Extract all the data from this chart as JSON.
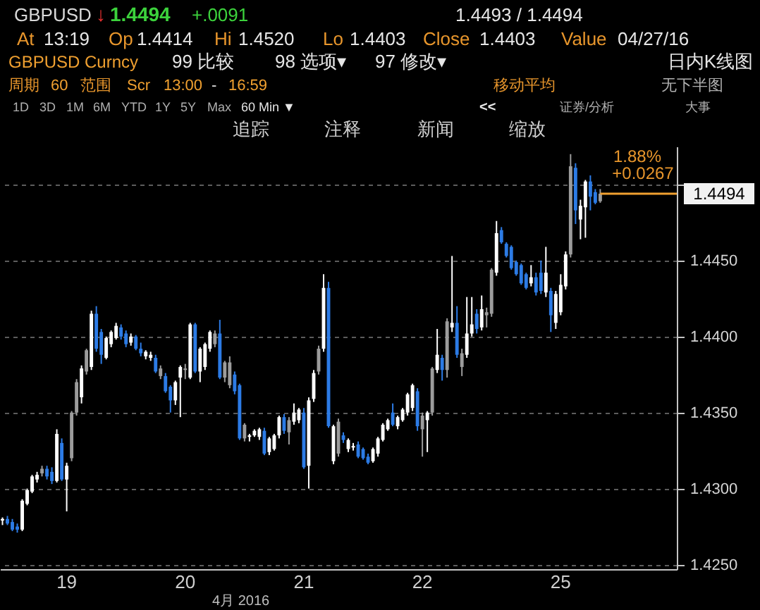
{
  "chart_data": {
    "type": "candlestick",
    "categories": [
      null,
      null,
      null,
      null,
      null,
      null,
      null,
      null,
      null,
      null,
      null,
      null,
      null,
      "19",
      null,
      null,
      null,
      null,
      null,
      null,
      null,
      null,
      null,
      null,
      null,
      null,
      null,
      null,
      null,
      null,
      null,
      null,
      null,
      null,
      null,
      null,
      null,
      "20",
      null,
      null,
      null,
      null,
      null,
      null,
      null,
      null,
      null,
      null,
      null,
      null,
      null,
      null,
      null,
      null,
      null,
      null,
      null,
      null,
      null,
      null,
      null,
      "21",
      null,
      null,
      null,
      null,
      null,
      null,
      null,
      null,
      null,
      null,
      null,
      null,
      null,
      null,
      null,
      null,
      null,
      null,
      null,
      null,
      null,
      null,
      null,
      "22",
      null,
      null,
      null,
      null,
      null,
      null,
      null,
      null,
      null,
      null,
      null,
      null,
      null,
      null,
      null,
      null,
      null,
      null,
      null,
      null,
      null,
      null,
      null,
      null,
      null,
      null,
      null,
      "25",
      null,
      null,
      null,
      null,
      null,
      null,
      null,
      null,
      null,
      null,
      null,
      null,
      null,
      null,
      null,
      null,
      null,
      null,
      null,
      null,
      null,
      null,
      null
    ],
    "ohlc": [
      [
        1.4279,
        1.4281,
        1.4276,
        1.428
      ],
      [
        1.428,
        1.4282,
        1.4276,
        1.4277
      ],
      [
        1.4278,
        1.428,
        1.4272,
        1.4273
      ],
      [
        1.4275,
        1.4277,
        1.4271,
        1.4273
      ],
      [
        1.4273,
        1.4293,
        1.4272,
        1.4292
      ],
      [
        1.429,
        1.43,
        1.4289,
        1.4299
      ],
      [
        1.4298,
        1.4309,
        1.4297,
        1.4308
      ],
      [
        1.4306,
        1.4311,
        1.4304,
        1.4309
      ],
      [
        1.431,
        1.4315,
        1.4308,
        1.4313
      ],
      [
        1.4313,
        1.4315,
        1.4306,
        1.4308
      ],
      [
        1.4311,
        1.4314,
        1.4303,
        1.4305
      ],
      [
        1.4305,
        1.4339,
        1.4304,
        1.4336
      ],
      [
        1.433,
        1.4333,
        1.4305,
        1.4306
      ],
      [
        1.4306,
        1.4317,
        1.4285,
        1.4315
      ],
      [
        1.432,
        1.4351,
        1.4318,
        1.435
      ],
      [
        1.435,
        1.4372,
        1.4348,
        1.437
      ],
      [
        1.436,
        1.4381,
        1.4356,
        1.4379
      ],
      [
        1.4377,
        1.4392,
        1.4375,
        1.4391
      ],
      [
        1.438,
        1.4417,
        1.4378,
        1.4415
      ],
      [
        1.4415,
        1.442,
        1.439,
        1.4392
      ],
      [
        1.4403,
        1.4405,
        1.4382,
        1.4388
      ],
      [
        1.4386,
        1.44,
        1.4385,
        1.4399
      ],
      [
        1.4395,
        1.4404,
        1.4393,
        1.4403
      ],
      [
        1.4399,
        1.4409,
        1.4398,
        1.4407
      ],
      [
        1.4406,
        1.4408,
        1.4398,
        1.44
      ],
      [
        1.4402,
        1.4404,
        1.4393,
        1.4395
      ],
      [
        1.4396,
        1.4402,
        1.4394,
        1.44
      ],
      [
        1.44,
        1.4401,
        1.4391,
        1.4392
      ],
      [
        1.4392,
        1.4396,
        1.4387,
        1.4389
      ],
      [
        1.4387,
        1.4391,
        1.4385,
        1.439
      ],
      [
        1.4386,
        1.439,
        1.4384,
        1.4388
      ],
      [
        1.4386,
        1.4388,
        1.4376,
        1.4377
      ],
      [
        1.4379,
        1.4381,
        1.4372,
        1.4374
      ],
      [
        1.4374,
        1.4376,
        1.4363,
        1.4364
      ],
      [
        1.4367,
        1.4368,
        1.435,
        1.4358
      ],
      [
        1.4358,
        1.4371,
        1.4355,
        1.437
      ],
      [
        1.4373,
        1.4381,
        1.4347,
        1.438
      ],
      [
        1.4378,
        1.4382,
        1.4372,
        1.4379
      ],
      [
        1.4373,
        1.4409,
        1.4372,
        1.4408
      ],
      [
        1.4408,
        1.4409,
        1.4376,
        1.4377
      ],
      [
        1.4377,
        1.4393,
        1.437,
        1.4392
      ],
      [
        1.438,
        1.4396,
        1.4378,
        1.4395
      ],
      [
        1.4392,
        1.4404,
        1.439,
        1.4403
      ],
      [
        1.4395,
        1.4404,
        1.4393,
        1.4402
      ],
      [
        1.4402,
        1.4411,
        1.4372,
        1.4373
      ],
      [
        1.4373,
        1.4384,
        1.437,
        1.4383
      ],
      [
        1.4383,
        1.4387,
        1.4366,
        1.4368
      ],
      [
        1.4375,
        1.4377,
        1.4362,
        1.4364
      ],
      [
        1.4368,
        1.4369,
        1.4332,
        1.4333
      ],
      [
        1.4333,
        1.4343,
        1.4331,
        1.4342
      ],
      [
        1.4334,
        1.4336,
        1.4331,
        1.4335
      ],
      [
        1.4335,
        1.4339,
        1.4334,
        1.4338
      ],
      [
        1.4334,
        1.434,
        1.4332,
        1.4339
      ],
      [
        1.4338,
        1.434,
        1.4322,
        1.4323
      ],
      [
        1.4324,
        1.4334,
        1.4322,
        1.4333
      ],
      [
        1.4326,
        1.4336,
        1.4325,
        1.4335
      ],
      [
        1.4335,
        1.4348,
        1.4333,
        1.4347
      ],
      [
        1.4347,
        1.4349,
        1.4336,
        1.4338
      ],
      [
        1.4337,
        1.4347,
        1.4329,
        1.4345
      ],
      [
        1.4344,
        1.4356,
        1.4342,
        1.435
      ],
      [
        1.4345,
        1.4353,
        1.4343,
        1.4352
      ],
      [
        1.435,
        1.4353,
        1.4313,
        1.4314
      ],
      [
        1.4315,
        1.436,
        1.43,
        1.4358
      ],
      [
        1.4359,
        1.4378,
        1.4357,
        1.4376
      ],
      [
        1.4377,
        1.4394,
        1.4375,
        1.4392
      ],
      [
        1.4392,
        1.4441,
        1.439,
        1.4432
      ],
      [
        1.4432,
        1.4436,
        1.434,
        1.4341
      ],
      [
        1.4318,
        1.4342,
        1.4316,
        1.4341
      ],
      [
        1.4344,
        1.4346,
        1.4321,
        1.4323
      ],
      [
        1.4335,
        1.4337,
        1.433,
        1.4332
      ],
      [
        1.4326,
        1.4333,
        1.4324,
        1.4332
      ],
      [
        1.4327,
        1.433,
        1.4325,
        1.4328
      ],
      [
        1.4329,
        1.4331,
        1.432,
        1.4321
      ],
      [
        1.4326,
        1.4327,
        1.4319,
        1.432
      ],
      [
        1.4321,
        1.4323,
        1.4316,
        1.4317
      ],
      [
        1.4318,
        1.4327,
        1.4317,
        1.4326
      ],
      [
        1.4323,
        1.4334,
        1.4321,
        1.4333
      ],
      [
        1.4332,
        1.4343,
        1.4331,
        1.4342
      ],
      [
        1.4339,
        1.4346,
        1.4338,
        1.4345
      ],
      [
        1.435,
        1.4356,
        1.4341,
        1.4342
      ],
      [
        1.4341,
        1.4348,
        1.4339,
        1.4347
      ],
      [
        1.4345,
        1.4353,
        1.4344,
        1.4352
      ],
      [
        1.435,
        1.4363,
        1.4348,
        1.4362
      ],
      [
        1.4353,
        1.4369,
        1.4351,
        1.4368
      ],
      [
        1.4364,
        1.4366,
        1.4338,
        1.4341
      ],
      [
        1.4339,
        1.435,
        1.4321,
        1.4348
      ],
      [
        1.4345,
        1.4351,
        1.4324,
        1.435
      ],
      [
        1.435,
        1.438,
        1.4348,
        1.4379
      ],
      [
        1.4378,
        1.4405,
        1.4376,
        1.4388
      ],
      [
        1.4386,
        1.4388,
        1.4371,
        1.4378
      ],
      [
        1.4378,
        1.4412,
        1.4373,
        1.441
      ],
      [
        1.4406,
        1.4453,
        1.4403,
        1.4409
      ],
      [
        1.4409,
        1.442,
        1.4386,
        1.4388
      ],
      [
        1.438,
        1.4392,
        1.4374,
        1.4389
      ],
      [
        1.4388,
        1.4426,
        1.4386,
        1.4402
      ],
      [
        1.4402,
        1.4426,
        1.44,
        1.4408
      ],
      [
        1.4415,
        1.4418,
        1.4402,
        1.4405
      ],
      [
        1.4406,
        1.4427,
        1.4404,
        1.4418
      ],
      [
        1.4414,
        1.4419,
        1.4406,
        1.4416
      ],
      [
        1.4415,
        1.4445,
        1.4413,
        1.4444
      ],
      [
        1.4442,
        1.4476,
        1.444,
        1.4468
      ],
      [
        1.447,
        1.4472,
        1.4461,
        1.4462
      ],
      [
        1.4461,
        1.4462,
        1.4452,
        1.4453
      ],
      [
        1.4459,
        1.446,
        1.4444,
        1.4445
      ],
      [
        1.4449,
        1.445,
        1.444,
        1.4441
      ],
      [
        1.4447,
        1.4448,
        1.4434,
        1.4435
      ],
      [
        1.4441,
        1.4442,
        1.4431,
        1.4432
      ],
      [
        1.4435,
        1.4447,
        1.4433,
        1.4439
      ],
      [
        1.4439,
        1.4442,
        1.4427,
        1.4429
      ],
      [
        1.4442,
        1.445,
        1.4428,
        1.443
      ],
      [
        1.4429,
        1.4459,
        1.4426,
        1.4442
      ],
      [
        1.443,
        1.4432,
        1.4403,
        1.4414
      ],
      [
        1.4409,
        1.443,
        1.4405,
        1.4428
      ],
      [
        1.4416,
        1.4441,
        1.4414,
        1.4434
      ],
      [
        1.4433,
        1.4456,
        1.4431,
        1.4454
      ],
      [
        1.4454,
        1.452,
        1.4452,
        1.4512
      ],
      [
        1.4511,
        1.4514,
        1.4474,
        1.4483
      ],
      [
        1.4477,
        1.449,
        1.4464,
        1.4486
      ],
      [
        1.4485,
        1.4503,
        1.4465,
        1.4502
      ],
      [
        1.4502,
        1.4506,
        1.4483,
        1.4492
      ],
      [
        1.4495,
        1.4497,
        1.4487,
        1.4488
      ],
      [
        1.4489,
        1.4497,
        1.4488,
        1.4494
      ],
      null,
      null,
      null,
      null,
      null,
      null,
      null,
      null,
      null,
      null,
      null,
      null,
      null,
      null,
      null
    ],
    "colors": [
      "#ffffff",
      "#2c7be5",
      "#2c7be5",
      "#2c7be5",
      "#ffffff",
      "#ffffff",
      "#ffffff",
      "#ffffff",
      "#9c9c9c",
      "#2c7be5",
      "#2c7be5",
      "#ffffff",
      "#2c7be5",
      "#ffffff",
      "#9c9c9c",
      "#9c9c9c",
      "#ffffff",
      "#9c9c9c",
      "#ffffff",
      "#2c7be5",
      "#2c7be5",
      "#ffffff",
      "#ffffff",
      "#ffffff",
      "#2c7be5",
      "#2c7be5",
      "#ffffff",
      "#2c7be5",
      "#2c7be5",
      "#ffffff",
      "#ffffff",
      "#2c7be5",
      "#9c9c9c",
      "#2c7be5",
      "#2c7be5",
      "#ffffff",
      "#ffffff",
      "#9c9c9c",
      "#ffffff",
      "#2c7be5",
      "#ffffff",
      "#ffffff",
      "#ffffff",
      "#9c9c9c",
      "#2c7be5",
      "#9c9c9c",
      "#9c9c9c",
      "#2c7be5",
      "#2c7be5",
      "#9c9c9c",
      "#ffffff",
      "#ffffff",
      "#ffffff",
      "#2c7be5",
      "#ffffff",
      "#ffffff",
      "#ffffff",
      "#2c7be5",
      "#9c9c9c",
      "#ffffff",
      "#ffffff",
      "#2c7be5",
      "#ffffff",
      "#ffffff",
      "#9c9c9c",
      "#ffffff",
      "#2c7be5",
      "#ffffff",
      "#9c9c9c",
      "#2c7be5",
      "#ffffff",
      "#ffffff",
      "#2c7be5",
      "#2c7be5",
      "#2c7be5",
      "#ffffff",
      "#ffffff",
      "#ffffff",
      "#ffffff",
      "#2c7be5",
      "#ffffff",
      "#ffffff",
      "#ffffff",
      "#ffffff",
      "#2c7be5",
      "#9c9c9c",
      "#ffffff",
      "#9c9c9c",
      "#ffffff",
      "#2c7be5",
      "#9c9c9c",
      "#ffffff",
      "#2c7be5",
      "#9c9c9c",
      "#ffffff",
      "#ffffff",
      "#2c7be5",
      "#ffffff",
      "#9c9c9c",
      "#9c9c9c",
      "#ffffff",
      "#2c7be5",
      "#2c7be5",
      "#2c7be5",
      "#2c7be5",
      "#2c7be5",
      "#2c7be5",
      "#ffffff",
      "#2c7be5",
      "#2c7be5",
      "#ffffff",
      "#2c7be5",
      "#ffffff",
      "#ffffff",
      "#ffffff",
      "#9c9c9c",
      "#2c7be5",
      "#ffffff",
      "#ffffff",
      "#2c7be5",
      "#2c7be5",
      "#9c9c9c",
      null,
      null,
      null,
      null,
      null,
      null,
      null,
      null,
      null,
      null,
      null,
      null,
      null,
      null,
      null
    ],
    "ylim": [
      1.4247,
      1.4525
    ],
    "yticks": [
      {
        "value": 1.425,
        "label": "1.4250"
      },
      {
        "value": 1.43,
        "label": "1.4300"
      },
      {
        "value": 1.435,
        "label": "1.4350"
      },
      {
        "value": 1.44,
        "label": "1.4400"
      },
      {
        "value": 1.445,
        "label": "1.4450"
      },
      {
        "value": 1.45,
        "label": null
      }
    ],
    "grid": "y",
    "xlabel": "4月 2016",
    "ref_lines": [
      {
        "axis": "y",
        "value": 1.4494,
        "label": "1.4494",
        "color": "#f0a030"
      }
    ],
    "annotations": [
      "GBPUSD",
      "↓",
      "1.4494",
      "+.0091",
      "1.4493 / 1.4494",
      "At",
      "13:19",
      "Op",
      "1.4414",
      "Hi",
      "1.4520",
      "Lo",
      "1.4403",
      "Close",
      "1.4403",
      "Value",
      "04/27/16",
      "GBPUSD Curncy",
      "99 比较",
      "98 选项▾",
      "97 修改▾",
      "日内K线图",
      "周期",
      "60",
      "范围",
      "Scr",
      "13:00",
      "-",
      "16:59",
      "移动平均",
      "无下半图",
      "1D",
      "3D",
      "1M",
      "6M",
      "YTD",
      "1Y",
      "5Y",
      "Max",
      "60 Min ▼",
      "<<",
      "证券/分析",
      "大事",
      "追踪",
      "注释",
      "新闻",
      "缩放",
      "1.88%",
      "+0.0267"
    ]
  }
}
